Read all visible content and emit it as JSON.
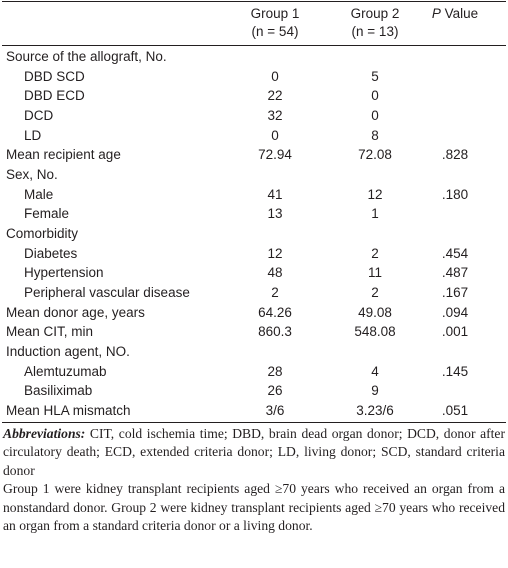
{
  "table": {
    "header": {
      "columns": [
        {
          "name": "Group 1",
          "n": "(n = 54)"
        },
        {
          "name": "Group 2",
          "n": "(n = 13)"
        }
      ],
      "p_value": {
        "italic": "P",
        "rest": "Value"
      }
    },
    "rows": [
      {
        "label": "Source of the allograft, No.",
        "level": 0,
        "cells": []
      },
      {
        "label": "DBD SCD",
        "level": 1,
        "cells": [
          "0",
          "5"
        ]
      },
      {
        "label": "DBD ECD",
        "level": 1,
        "cells": [
          "22",
          "0"
        ]
      },
      {
        "label": "DCD",
        "level": 1,
        "cells": [
          "32",
          "0"
        ]
      },
      {
        "label": "LD",
        "level": 1,
        "cells": [
          "0",
          "8"
        ]
      },
      {
        "label": "Mean recipient age",
        "level": 0,
        "cells": [
          "72.94",
          "72.08",
          ".828"
        ]
      },
      {
        "label": "Sex, No.",
        "level": 0,
        "cells": []
      },
      {
        "label": "Male",
        "level": 1,
        "cells": [
          "41",
          "12",
          ".180"
        ]
      },
      {
        "label": "Female",
        "level": 1,
        "cells": [
          "13",
          "1"
        ]
      },
      {
        "label": "Comorbidity",
        "level": 0,
        "cells": []
      },
      {
        "label": "Diabetes",
        "level": 1,
        "cells": [
          "12",
          "2",
          ".454"
        ]
      },
      {
        "label": "Hypertension",
        "level": 1,
        "cells": [
          "48",
          "11",
          ".487"
        ]
      },
      {
        "label": "Peripheral vascular disease",
        "level": 1,
        "cells": [
          "2",
          "2",
          ".167"
        ]
      },
      {
        "label": "Mean donor age, years",
        "level": 0,
        "cells": [
          "64.26",
          "49.08",
          ".094"
        ]
      },
      {
        "label": "Mean CIT, min",
        "level": 0,
        "cells": [
          "860.3",
          "548.08",
          ".001"
        ]
      },
      {
        "label": "Induction agent, NO.",
        "level": 0,
        "cells": []
      },
      {
        "label": "Alemtuzumab",
        "level": 1,
        "cells": [
          "28",
          "4",
          ".145"
        ]
      },
      {
        "label": "Basiliximab",
        "level": 1,
        "cells": [
          "26",
          "9"
        ]
      },
      {
        "label": "Mean HLA mismatch",
        "level": 0,
        "cells": [
          "3/6",
          "3.23/6",
          ".051"
        ]
      }
    ]
  },
  "footnotes": {
    "abbreviations": {
      "label": "Abbreviations:",
      "text": "CIT, cold ischemia time; DBD, brain dead organ donor; DCD, donor after circulatory death; ECD, extended criteria donor; LD, living donor; SCD, standard criteria donor"
    },
    "note": "Group 1 were kidney transplant recipients aged ≥70 years who received an organ from a nonstandard donor. Group 2 were kidney transplant recipients aged ≥70 years who received an organ from a standard criteria donor or a living donor."
  }
}
